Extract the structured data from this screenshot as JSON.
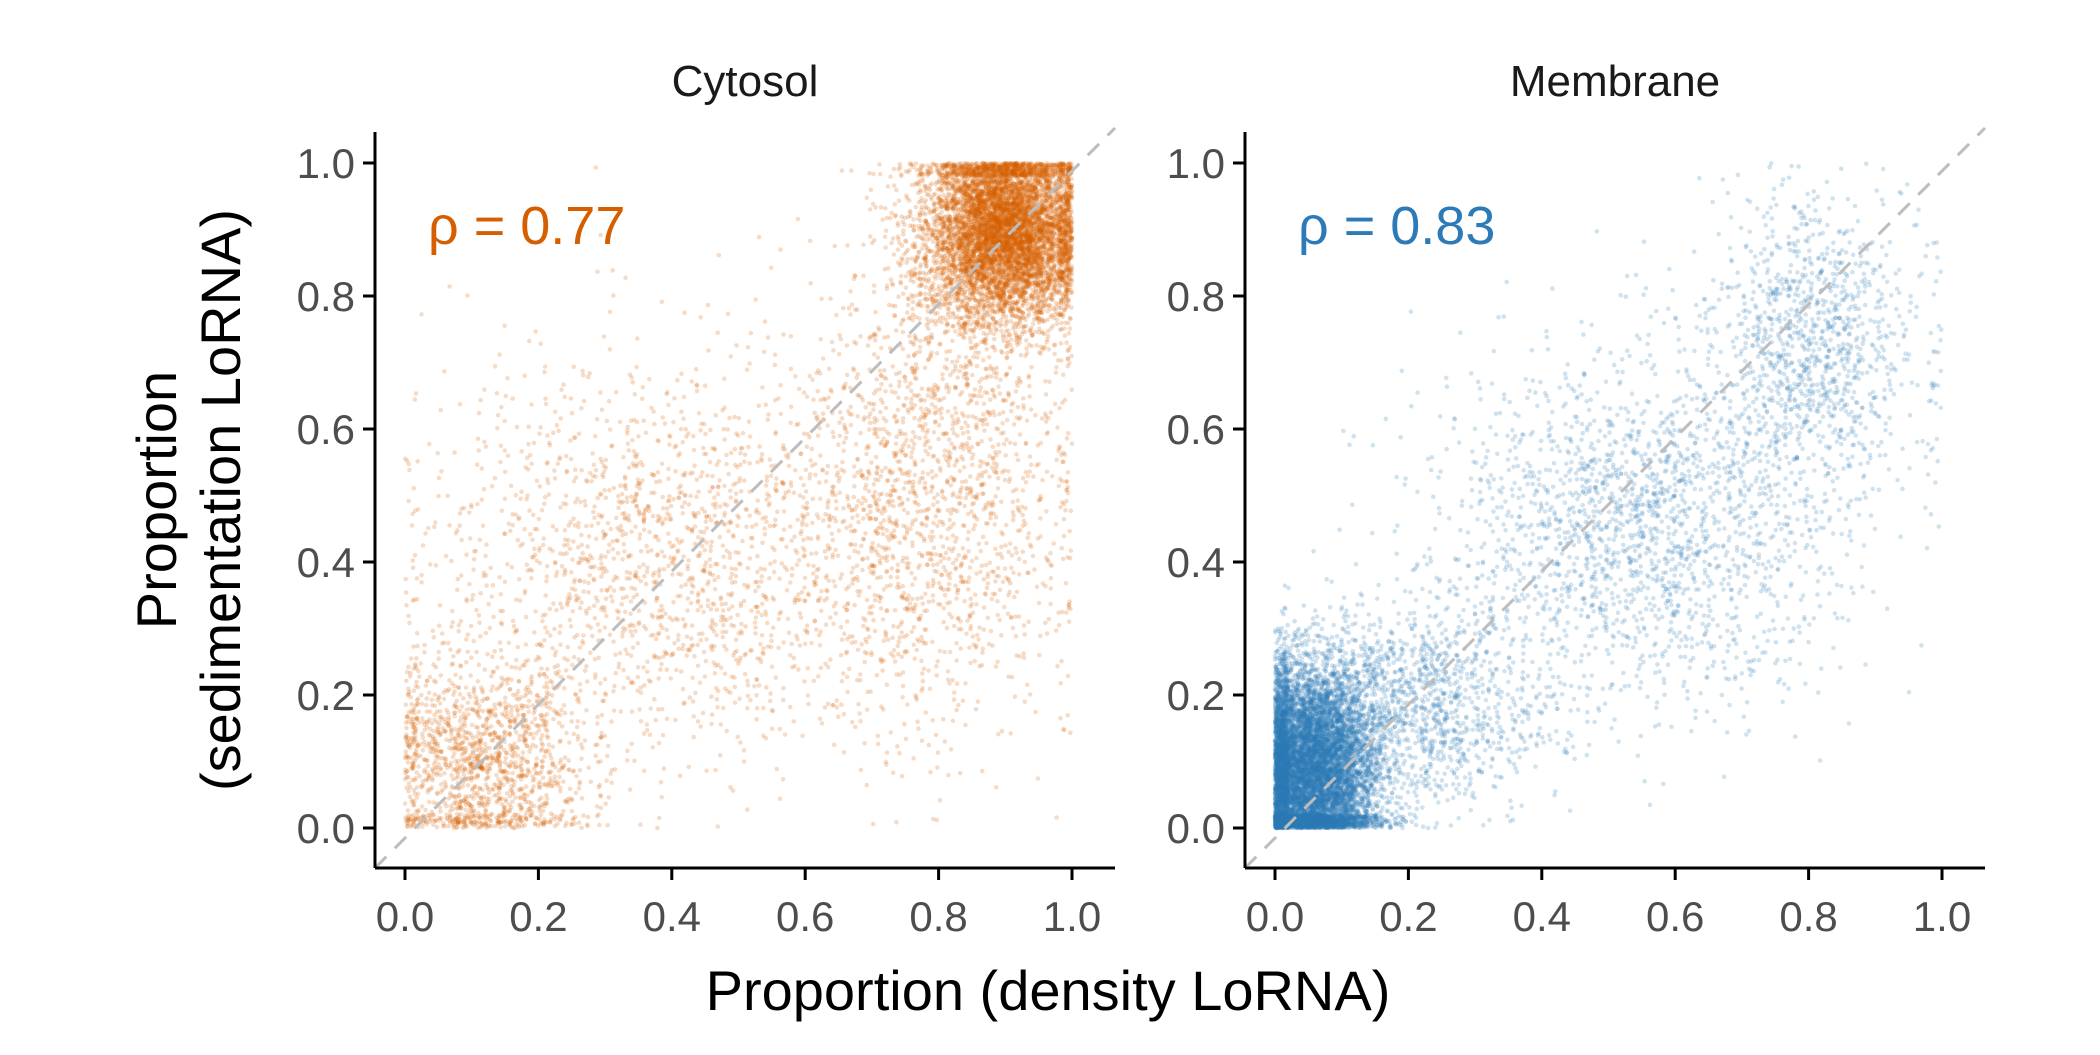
{
  "chart_data": {
    "type": "scatter",
    "xlabel": "Proportion (density LoRNA)",
    "ylabel_lines": [
      "Proportion",
      "(sedimentation LoRNA)"
    ],
    "xlim": [
      0,
      1
    ],
    "ylim": [
      0,
      1
    ],
    "x_ticks": [
      "0.0",
      "0.2",
      "0.4",
      "0.6",
      "0.8",
      "1.0"
    ],
    "y_ticks": [
      "0.0",
      "0.2",
      "0.4",
      "0.6",
      "0.8",
      "1.0"
    ],
    "grid": false,
    "reference_line": "y = x (dashed grey)",
    "panels": [
      {
        "title": "Cytosol",
        "annotation": "ρ = 0.77",
        "color": "#d55e00",
        "correlation": 0.77,
        "approx_points": 12000,
        "clusters": [
          {
            "center": [
              0.9,
              0.9
            ],
            "sd": [
              0.06,
              0.07
            ],
            "share": 0.58
          },
          {
            "center": [
              0.8,
              0.55
            ],
            "sd": [
              0.1,
              0.2
            ],
            "share": 0.15
          },
          {
            "center": [
              0.4,
              0.4
            ],
            "sd": [
              0.18,
              0.15
            ],
            "share": 0.15
          },
          {
            "center": [
              0.12,
              0.1
            ],
            "sd": [
              0.08,
              0.08
            ],
            "share": 0.12
          }
        ]
      },
      {
        "title": "Membrane",
        "annotation": "ρ = 0.83",
        "color": "#2c7bb6",
        "correlation": 0.83,
        "approx_points": 14000,
        "clusters": [
          {
            "center": [
              0.05,
              0.08
            ],
            "sd": [
              0.05,
              0.08
            ],
            "share": 0.68
          },
          {
            "center": [
              0.2,
              0.18
            ],
            "sd": [
              0.1,
              0.08
            ],
            "share": 0.1
          },
          {
            "center": [
              0.55,
              0.45
            ],
            "sd": [
              0.15,
              0.13
            ],
            "share": 0.14
          },
          {
            "center": [
              0.8,
              0.72
            ],
            "sd": [
              0.08,
              0.11
            ],
            "share": 0.08
          }
        ]
      }
    ]
  }
}
